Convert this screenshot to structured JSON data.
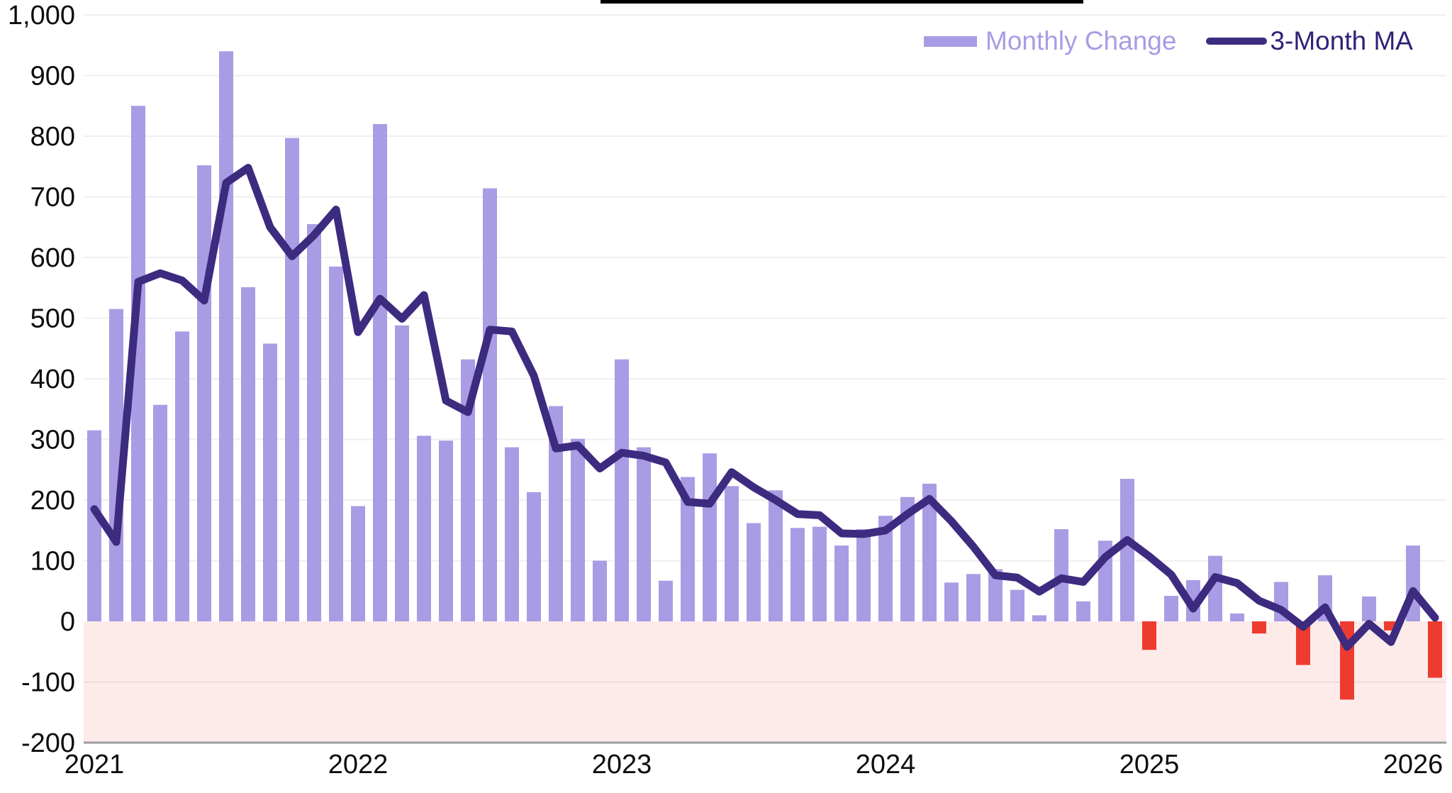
{
  "legend": {
    "monthly_change_label": "Monthly Change",
    "ma_label": "3-Month MA"
  },
  "colors": {
    "bar_positive": "#a89ce4",
    "bar_negative": "#ee3b30",
    "ma_line": "#3d2b80",
    "negative_region": "#fcebe9",
    "gridline": "#efefef",
    "gridline_in_negative_region": "#eddbdb",
    "axis_spine": "#9e9e9e",
    "tick_text": "#0d0d0d",
    "title_underline": "#000000"
  },
  "chart_data": {
    "type": "bar",
    "title": "",
    "xlabel": "",
    "ylabel": "",
    "ylim": [
      -200,
      1000
    ],
    "grid": true,
    "legend_position": "top-right",
    "negative_region_shaded": true,
    "x": [
      "2021-01",
      "2021-02",
      "2021-03",
      "2021-04",
      "2021-05",
      "2021-06",
      "2021-07",
      "2021-08",
      "2021-09",
      "2021-10",
      "2021-11",
      "2021-12",
      "2022-01",
      "2022-02",
      "2022-03",
      "2022-04",
      "2022-05",
      "2022-06",
      "2022-07",
      "2022-08",
      "2022-09",
      "2022-10",
      "2022-11",
      "2022-12",
      "2023-01",
      "2023-02",
      "2023-03",
      "2023-04",
      "2023-05",
      "2023-06",
      "2023-07",
      "2023-08",
      "2023-09",
      "2023-10",
      "2023-11",
      "2023-12",
      "2024-01",
      "2024-02",
      "2024-03",
      "2024-04",
      "2024-05",
      "2024-06",
      "2024-07",
      "2024-08",
      "2024-09",
      "2024-10",
      "2024-11",
      "2024-12",
      "2025-01",
      "2025-02",
      "2025-03",
      "2025-04",
      "2025-05",
      "2025-06",
      "2025-07",
      "2025-08",
      "2025-09",
      "2025-10",
      "2025-11",
      "2025-12",
      "2026-01",
      "2026-02"
    ],
    "series": [
      {
        "name": "Monthly Change",
        "type": "bar",
        "values": [
          315,
          515,
          850,
          357,
          478,
          752,
          940,
          551,
          458,
          797,
          655,
          585,
          190,
          820,
          488,
          306,
          298,
          432,
          714,
          287,
          213,
          355,
          301,
          100,
          432,
          287,
          67,
          238,
          277,
          223,
          162,
          216,
          154,
          156,
          125,
          152,
          174,
          205,
          227,
          64,
          78,
          86,
          52,
          10,
          152,
          33,
          133,
          235,
          -47,
          42,
          68,
          108,
          13,
          -20,
          65,
          -72,
          76,
          -129,
          41,
          -15,
          125,
          -93
        ]
      },
      {
        "name": "3-Month MA",
        "type": "line",
        "values": [
          185,
          131,
          560,
          574,
          562,
          529,
          723,
          748,
          650,
          602,
          637,
          679,
          477,
          532,
          499,
          538,
          364,
          345,
          481,
          478,
          405,
          285,
          290,
          252,
          278,
          273,
          262,
          197,
          194,
          246,
          221,
          200,
          177,
          175,
          145,
          144,
          150,
          177,
          202,
          165,
          123,
          76,
          72,
          49,
          71,
          65,
          106,
          134,
          107,
          77,
          21,
          73,
          63,
          34,
          19,
          -9,
          23,
          -42,
          -4,
          -34,
          50,
          6
        ]
      }
    ],
    "y_ticks": [
      1000,
      900,
      800,
      700,
      600,
      500,
      400,
      300,
      200,
      100,
      0,
      -100,
      -200
    ],
    "y_tick_labels": [
      "1,000",
      "900",
      "800",
      "700",
      "600",
      "500",
      "400",
      "300",
      "200",
      "100",
      "0",
      "-100",
      "-200"
    ],
    "x_tick_labels": [
      "2021",
      "2022",
      "2023",
      "2024",
      "2025",
      "2026"
    ]
  }
}
